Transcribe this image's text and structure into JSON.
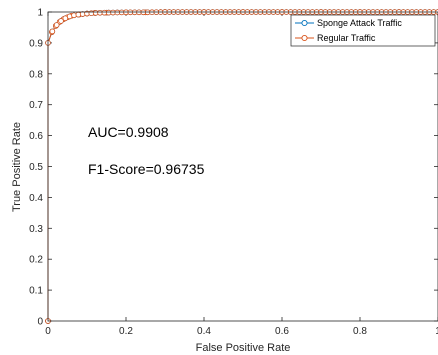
{
  "chart_data": {
    "type": "line",
    "title": "",
    "xlabel": "False Positive Rate",
    "ylabel": "True Positive Rate",
    "xlim": [
      0,
      1
    ],
    "ylim": [
      0,
      1
    ],
    "x_ticks": [
      0,
      0.2,
      0.4,
      0.6,
      0.8,
      1
    ],
    "x_tick_labels": [
      "0",
      "0.2",
      "0.4",
      "0.6",
      "0.8",
      "1"
    ],
    "y_ticks": [
      0,
      0.1,
      0.2,
      0.3,
      0.4,
      0.5,
      0.6,
      0.7,
      0.8,
      0.9,
      1
    ],
    "y_tick_labels": [
      "0",
      "0.1",
      "0.2",
      "0.3",
      "0.4",
      "0.5",
      "0.6",
      "0.7",
      "0.8",
      "0.9",
      "1"
    ],
    "grid": false,
    "legend_position": "top-right",
    "annotations": [
      "AUC=0.9908",
      "F1-Score=0.96735"
    ],
    "series": [
      {
        "name": "Sponge Attack Traffic",
        "color": "#0072BD",
        "marker": "circle",
        "x": [
          0,
          0,
          0.01,
          0.02,
          0.03,
          0.04,
          0.05,
          0.06,
          0.08,
          0.1,
          0.12,
          0.15,
          0.2,
          0.25,
          0.3,
          0.4,
          0.5,
          0.6,
          0.7,
          0.8,
          0.9,
          1
        ],
        "y": [
          0,
          0.9,
          0.935,
          0.955,
          0.968,
          0.977,
          0.983,
          0.988,
          0.992,
          0.995,
          0.997,
          0.998,
          0.999,
          0.999,
          1,
          1,
          1,
          1,
          1,
          1,
          1,
          1
        ]
      },
      {
        "name": "Regular Traffic",
        "color": "#D95319",
        "marker": "circle",
        "x": [
          0,
          0,
          0.01,
          0.02,
          0.03,
          0.04,
          0.05,
          0.06,
          0.08,
          0.1,
          0.12,
          0.15,
          0.2,
          0.25,
          0.3,
          0.4,
          0.5,
          0.6,
          0.7,
          0.8,
          0.9,
          1
        ],
        "y": [
          0,
          0.9,
          0.935,
          0.955,
          0.968,
          0.977,
          0.983,
          0.988,
          0.992,
          0.995,
          0.997,
          0.998,
          0.999,
          0.999,
          1,
          1,
          1,
          1,
          1,
          1,
          1,
          1
        ]
      }
    ]
  }
}
